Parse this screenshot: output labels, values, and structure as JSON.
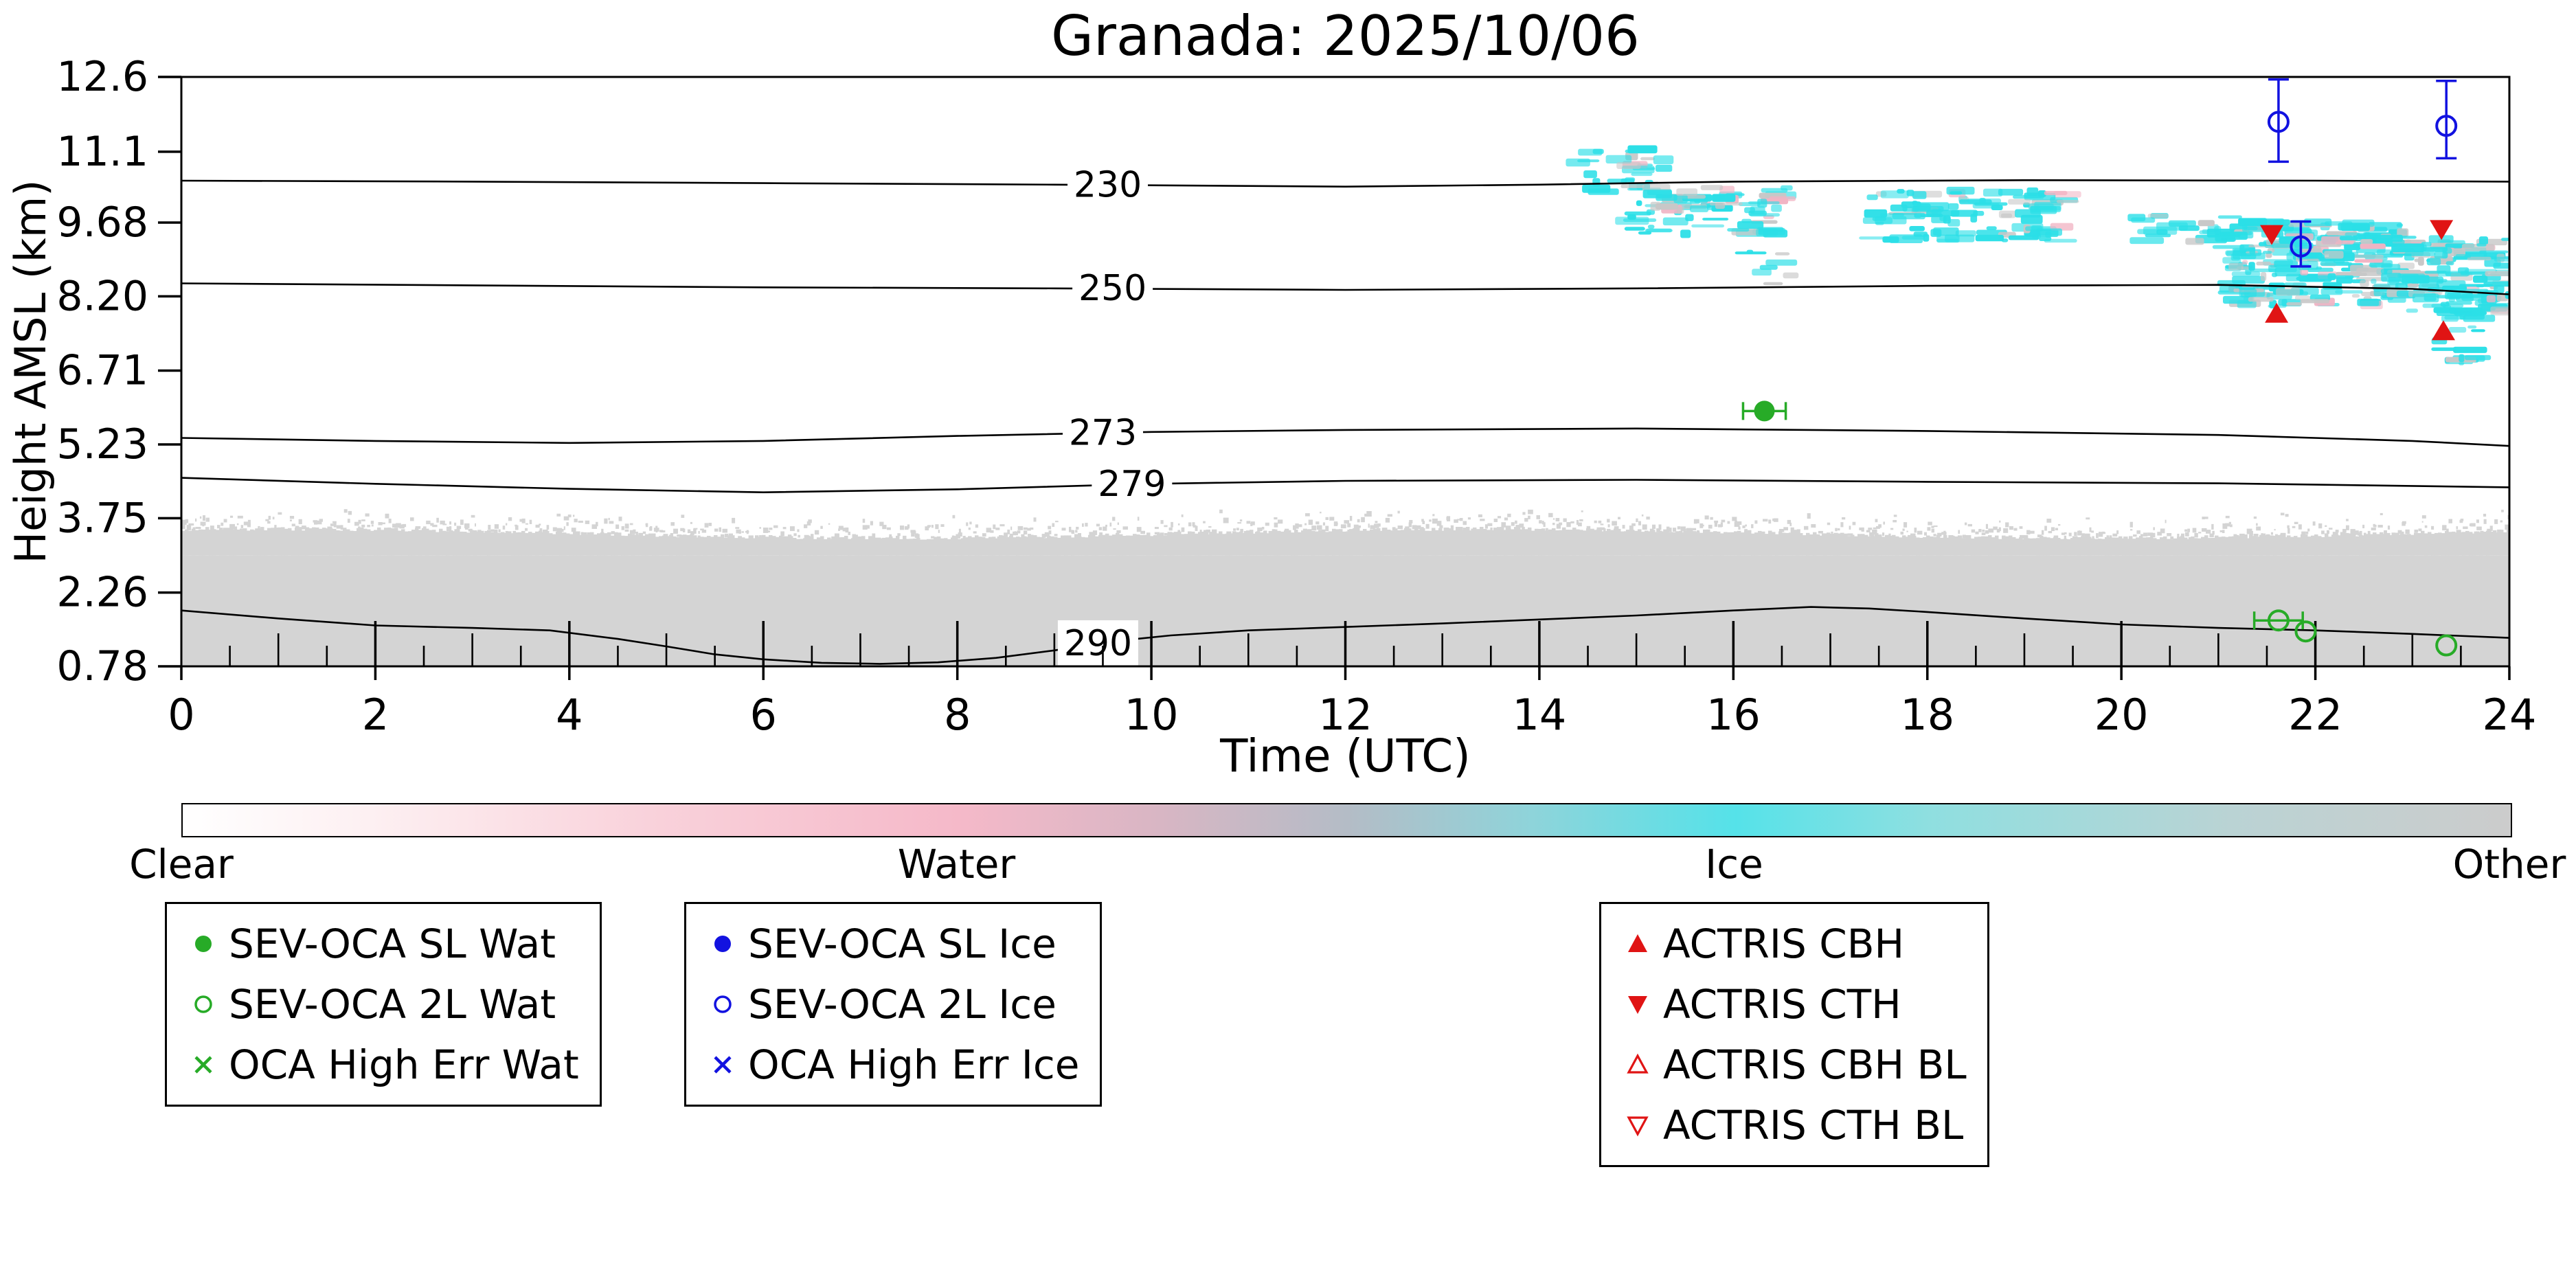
{
  "figure": {
    "background": "#ffffff"
  },
  "chart_data": {
    "type": "heatmap",
    "title": "Granada: 2025/10/06",
    "xlabel": "Time (UTC)",
    "ylabel": "Height AMSL (km)",
    "xlim": [
      0,
      24
    ],
    "ylim": [
      0.78,
      12.6
    ],
    "grid": false,
    "x_ticks": [
      {
        "value": 0,
        "label": "0"
      },
      {
        "value": 2,
        "label": "2"
      },
      {
        "value": 4,
        "label": "4"
      },
      {
        "value": 6,
        "label": "6"
      },
      {
        "value": 8,
        "label": "8"
      },
      {
        "value": 10,
        "label": "10"
      },
      {
        "value": 12,
        "label": "12"
      },
      {
        "value": 14,
        "label": "14"
      },
      {
        "value": 16,
        "label": "16"
      },
      {
        "value": 18,
        "label": "18"
      },
      {
        "value": 20,
        "label": "20"
      },
      {
        "value": 22,
        "label": "22"
      },
      {
        "value": 24,
        "label": "24"
      }
    ],
    "x_minor_tick_step": 0.5,
    "y_ticks": [
      {
        "value": 0.78,
        "label": "0.78"
      },
      {
        "value": 2.26,
        "label": "2.26"
      },
      {
        "value": 3.75,
        "label": "3.75"
      },
      {
        "value": 5.23,
        "label": "5.23"
      },
      {
        "value": 6.71,
        "label": "6.71"
      },
      {
        "value": 8.2,
        "label": "8.20"
      },
      {
        "value": 9.68,
        "label": "9.68"
      },
      {
        "value": 11.1,
        "label": "11.1"
      },
      {
        "value": 12.6,
        "label": "12.6"
      }
    ],
    "isotherms": [
      {
        "label": "230",
        "label_t": 9.55,
        "points": [
          [
            0,
            10.52
          ],
          [
            3,
            10.5
          ],
          [
            6,
            10.47
          ],
          [
            9,
            10.44
          ],
          [
            12,
            10.4
          ],
          [
            14,
            10.44
          ],
          [
            16,
            10.5
          ],
          [
            19,
            10.53
          ],
          [
            22,
            10.52
          ],
          [
            24,
            10.5
          ]
        ]
      },
      {
        "label": "250",
        "label_t": 9.6,
        "points": [
          [
            0,
            8.46
          ],
          [
            3,
            8.42
          ],
          [
            6,
            8.38
          ],
          [
            9,
            8.36
          ],
          [
            12,
            8.33
          ],
          [
            15,
            8.36
          ],
          [
            18,
            8.41
          ],
          [
            21,
            8.43
          ],
          [
            23,
            8.35
          ],
          [
            24,
            8.24
          ]
        ]
      },
      {
        "label": "273",
        "label_t": 9.5,
        "points": [
          [
            0,
            5.36
          ],
          [
            2,
            5.3
          ],
          [
            4,
            5.26
          ],
          [
            6,
            5.3
          ],
          [
            8,
            5.4
          ],
          [
            10,
            5.48
          ],
          [
            12,
            5.52
          ],
          [
            15,
            5.55
          ],
          [
            18,
            5.5
          ],
          [
            21,
            5.42
          ],
          [
            23,
            5.3
          ],
          [
            24,
            5.2
          ]
        ]
      },
      {
        "label": "279",
        "label_t": 9.8,
        "points": [
          [
            0,
            4.56
          ],
          [
            2,
            4.44
          ],
          [
            4,
            4.34
          ],
          [
            6,
            4.27
          ],
          [
            8,
            4.33
          ],
          [
            10,
            4.44
          ],
          [
            12,
            4.5
          ],
          [
            15,
            4.52
          ],
          [
            18,
            4.48
          ],
          [
            21,
            4.45
          ],
          [
            24,
            4.37
          ]
        ]
      },
      {
        "label": "290",
        "label_t": 9.45,
        "points": [
          [
            0,
            1.9
          ],
          [
            1,
            1.74
          ],
          [
            2,
            1.6
          ],
          [
            3,
            1.55
          ],
          [
            3.8,
            1.5
          ],
          [
            4.5,
            1.33
          ],
          [
            5,
            1.18
          ],
          [
            5.5,
            1.02
          ],
          [
            6,
            0.92
          ],
          [
            6.6,
            0.85
          ],
          [
            7.2,
            0.83
          ],
          [
            7.8,
            0.86
          ],
          [
            8.4,
            0.95
          ],
          [
            9,
            1.1
          ],
          [
            9.6,
            1.28
          ],
          [
            10.2,
            1.4
          ],
          [
            11,
            1.5
          ],
          [
            12,
            1.57
          ],
          [
            13,
            1.64
          ],
          [
            14,
            1.72
          ],
          [
            15,
            1.8
          ],
          [
            16,
            1.9
          ],
          [
            16.8,
            1.97
          ],
          [
            17.4,
            1.94
          ],
          [
            18,
            1.87
          ],
          [
            19,
            1.74
          ],
          [
            20,
            1.62
          ],
          [
            21,
            1.55
          ],
          [
            22,
            1.5
          ],
          [
            23,
            1.43
          ],
          [
            24,
            1.35
          ]
        ]
      }
    ],
    "aerosol_layer": {
      "solid_top": 3.45,
      "noise": 0.38,
      "color": "#d4d4d4"
    },
    "cloud_colors": {
      "cyan": "#2bdfe7",
      "gray": "#c7c7c7",
      "pink": "#f1b3c3"
    },
    "cloud_patches": [
      {
        "t0": 14.35,
        "t1": 15.35,
        "h0": 10.25,
        "h1": 11.15,
        "density": 0.35,
        "colors": {
          "cyan": 0.85,
          "gray": 0.1,
          "pink": 0.05
        }
      },
      {
        "t0": 14.95,
        "t1": 16.55,
        "h0": 9.45,
        "h1": 10.4,
        "density": 0.55,
        "colors": {
          "cyan": 0.68,
          "gray": 0.2,
          "pink": 0.12
        }
      },
      {
        "t0": 16.15,
        "t1": 16.6,
        "h0": 8.45,
        "h1": 9.1,
        "density": 0.3,
        "colors": {
          "cyan": 0.9,
          "gray": 0.1
        }
      },
      {
        "t0": 17.4,
        "t1": 19.45,
        "h0": 9.3,
        "h1": 10.35,
        "density": 0.5,
        "colors": {
          "cyan": 0.85,
          "gray": 0.12,
          "pink": 0.03
        }
      },
      {
        "t0": 20.15,
        "t1": 21.15,
        "h0": 9.3,
        "h1": 9.85,
        "density": 0.45,
        "colors": {
          "cyan": 0.75,
          "gray": 0.15,
          "pink": 0.1
        }
      },
      {
        "t0": 21.1,
        "t1": 23.0,
        "h0": 8.0,
        "h1": 9.7,
        "density": 0.85,
        "colors": {
          "cyan": 0.72,
          "gray": 0.23,
          "pink": 0.05
        }
      },
      {
        "t0": 22.95,
        "t1": 24.0,
        "h0": 7.9,
        "h1": 9.35,
        "density": 0.8,
        "colors": {
          "cyan": 0.75,
          "gray": 0.2,
          "pink": 0.05
        }
      },
      {
        "t0": 23.25,
        "t1": 23.7,
        "h0": 6.85,
        "h1": 8.0,
        "density": 0.5,
        "colors": {
          "cyan": 0.95,
          "gray": 0.05
        }
      }
    ],
    "series_styles": {
      "sev_sl_wat": {
        "marker": "circle-filled",
        "color": "#27ab27"
      },
      "sev_2l_wat": {
        "marker": "circle-open",
        "color": "#27ab27"
      },
      "oca_err_wat": {
        "marker": "x",
        "color": "#27ab27"
      },
      "sev_sl_ice": {
        "marker": "circle-filled",
        "color": "#1212e0"
      },
      "sev_2l_ice": {
        "marker": "circle-open",
        "color": "#1212e0"
      },
      "oca_err_ice": {
        "marker": "x",
        "color": "#1212e0"
      },
      "actris_cbh": {
        "marker": "triangle-up-filled",
        "color": "#e01414"
      },
      "actris_cth": {
        "marker": "triangle-down-filled",
        "color": "#e01414"
      },
      "actris_cbh_bl": {
        "marker": "triangle-up-open",
        "color": "#e01414"
      },
      "actris_cth_bl": {
        "marker": "triangle-down-open",
        "color": "#e01414"
      }
    },
    "points": [
      {
        "series": "sev_sl_wat",
        "t": 16.32,
        "h": 5.9,
        "xerr": 0.22
      },
      {
        "series": "sev_2l_wat",
        "t": 21.62,
        "h": 1.7,
        "xerr": 0.25
      },
      {
        "series": "sev_2l_wat",
        "t": 21.9,
        "h": 1.48
      },
      {
        "series": "sev_2l_wat",
        "t": 23.35,
        "h": 1.2
      },
      {
        "series": "sev_2l_ice",
        "t": 21.62,
        "h": 11.7,
        "yerr_minus": 0.8,
        "yerr_plus": 0.85
      },
      {
        "series": "sev_2l_ice",
        "t": 23.35,
        "h": 11.62,
        "yerr_minus": 0.65,
        "yerr_plus": 0.9
      },
      {
        "series": "sev_2l_ice",
        "t": 21.85,
        "h": 9.2,
        "yerr_minus": 0.4,
        "yerr_plus": 0.5
      },
      {
        "series": "actris_cth",
        "t": 21.55,
        "h": 9.45
      },
      {
        "series": "actris_cth",
        "t": 23.3,
        "h": 9.55
      },
      {
        "series": "actris_cbh",
        "t": 21.6,
        "h": 7.85
      },
      {
        "series": "actris_cbh",
        "t": 23.32,
        "h": 7.5
      }
    ],
    "colorbar": {
      "gradient": [
        {
          "pos": 0.0,
          "color": "#ffffff"
        },
        {
          "pos": 0.08,
          "color": "#fdf0f2"
        },
        {
          "pos": 0.2,
          "color": "#f9d2db"
        },
        {
          "pos": 0.333,
          "color": "#f5b9c9"
        },
        {
          "pos": 0.42,
          "color": "#d8b6c4"
        },
        {
          "pos": 0.5,
          "color": "#b4bcc6"
        },
        {
          "pos": 0.58,
          "color": "#8ed4da"
        },
        {
          "pos": 0.667,
          "color": "#55e2e9"
        },
        {
          "pos": 0.75,
          "color": "#8fdfe0"
        },
        {
          "pos": 0.88,
          "color": "#bad3d4"
        },
        {
          "pos": 1.0,
          "color": "#cccccc"
        }
      ],
      "labels": [
        {
          "text": "Clear",
          "pos": 0.0
        },
        {
          "text": "Water",
          "pos": 0.333
        },
        {
          "text": "Ice",
          "pos": 0.667
        },
        {
          "text": "Other",
          "pos": 1.0
        }
      ]
    }
  },
  "legend_groups": [
    {
      "items": [
        {
          "series": "sev_sl_wat",
          "label": "SEV-OCA SL Wat"
        },
        {
          "series": "sev_2l_wat",
          "label": "SEV-OCA 2L Wat"
        },
        {
          "series": "oca_err_wat",
          "label": "OCA High Err Wat"
        }
      ]
    },
    {
      "items": [
        {
          "series": "sev_sl_ice",
          "label": "SEV-OCA SL Ice"
        },
        {
          "series": "sev_2l_ice",
          "label": "SEV-OCA 2L Ice"
        },
        {
          "series": "oca_err_ice",
          "label": "OCA High Err Ice"
        }
      ]
    },
    {
      "items": [
        {
          "series": "actris_cbh",
          "label": "ACTRIS CBH"
        },
        {
          "series": "actris_cth",
          "label": "ACTRIS CTH"
        },
        {
          "series": "actris_cbh_bl",
          "label": "ACTRIS CBH BL"
        },
        {
          "series": "actris_cth_bl",
          "label": "ACTRIS CTH BL"
        }
      ]
    }
  ]
}
